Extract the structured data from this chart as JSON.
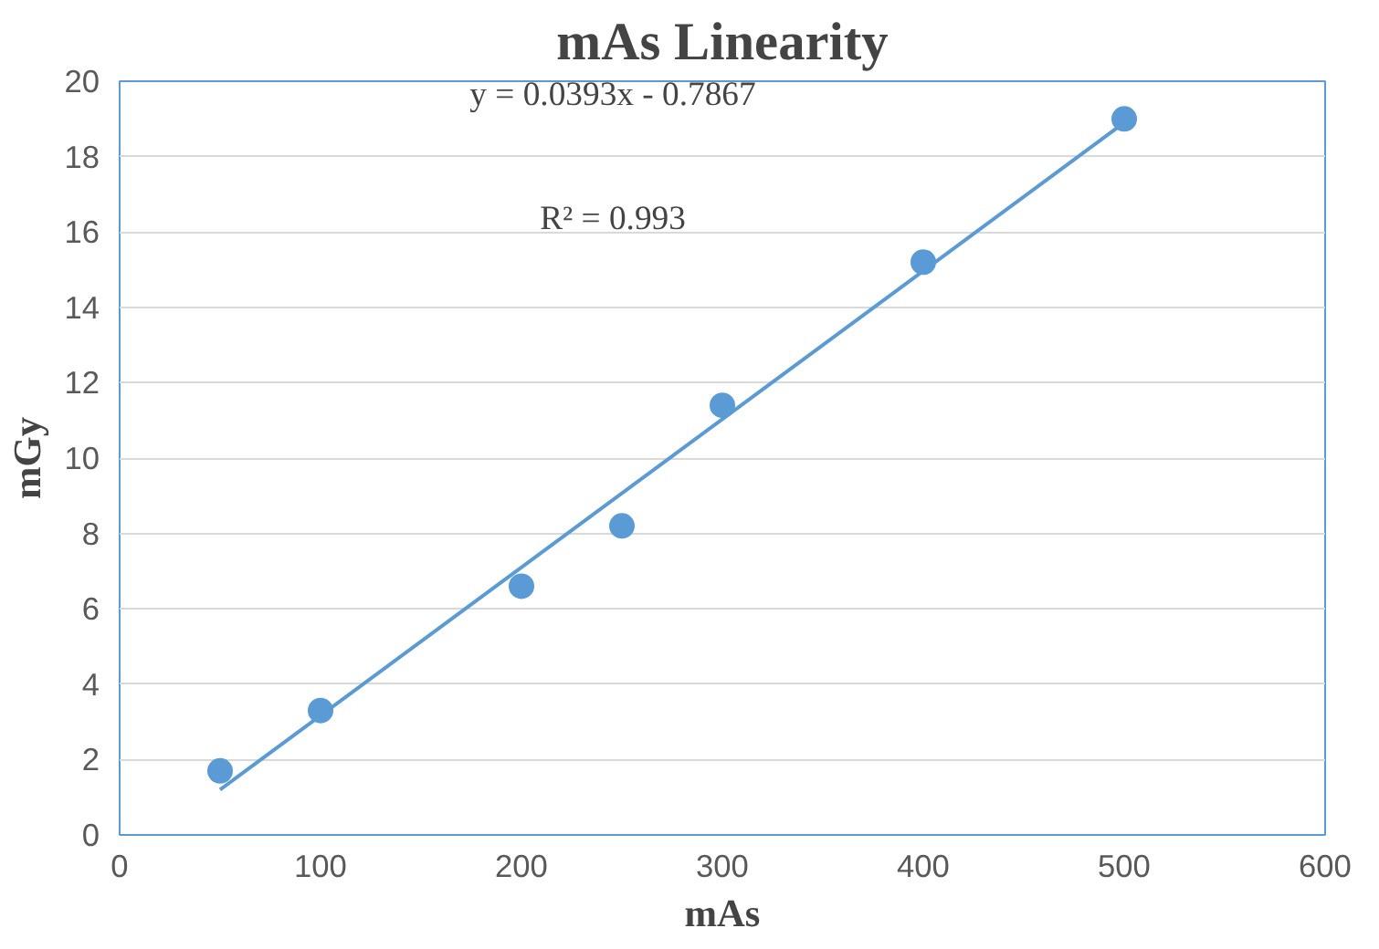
{
  "chart_data": {
    "type": "scatter",
    "title": "mAs Linearity",
    "xlabel": "mAs",
    "ylabel": "mGy",
    "series": [
      {
        "color": "#5b9bd5",
        "marker": "circle",
        "x": [
          50,
          100,
          200,
          250,
          300,
          400,
          500
        ],
        "values": [
          1.7,
          3.3,
          6.6,
          8.2,
          11.4,
          15.2,
          19.0
        ]
      },
      {
        "type": "line",
        "color": "#5b9bd5",
        "x": [
          50,
          500
        ],
        "values": [
          1.2,
          18.9
        ]
      }
    ],
    "annotations": [
      "y = 0.0393x - 0.7867",
      "R² = 0.993"
    ],
    "xlim": [
      0,
      600
    ],
    "xticks": [
      0,
      100,
      200,
      300,
      400,
      500,
      600
    ],
    "ylim": [
      0,
      20
    ],
    "yticks": [
      0,
      2,
      4,
      6,
      8,
      10,
      12,
      14,
      16,
      18,
      20
    ],
    "grid": "y"
  }
}
